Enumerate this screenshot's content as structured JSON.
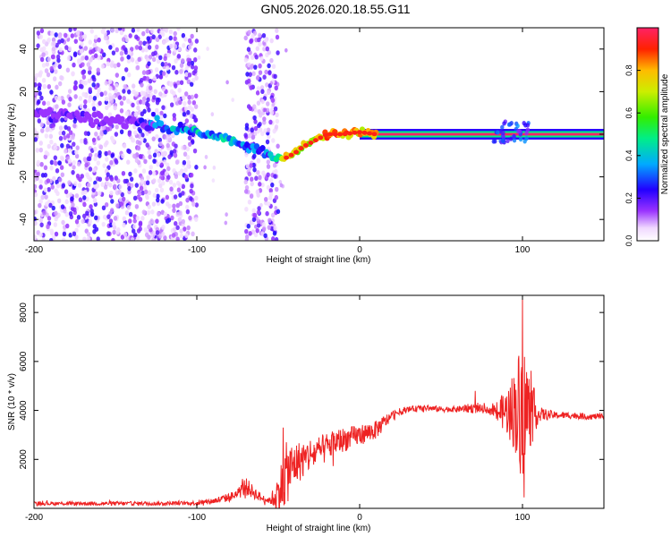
{
  "figure": {
    "title": "GN05.2026.020.18.55.G11"
  },
  "chart_data": [
    {
      "type": "heatmap",
      "xlabel": "Height of straight line (km)",
      "ylabel": "Frequency (Hz)",
      "xlim": [
        -200,
        150
      ],
      "ylim": [
        -50,
        50
      ],
      "xticks": [
        -200,
        -100,
        0,
        100
      ],
      "yticks": [
        -40,
        -20,
        0,
        20,
        40
      ],
      "colorbar": {
        "label": "Normalized spectral amplitude",
        "range": [
          0,
          1
        ],
        "ticks": [
          "0.0",
          "0.2",
          "0.4",
          "0.6",
          "0.8"
        ]
      },
      "ridge": {
        "x": [
          -200,
          -180,
          -160,
          -140,
          -120,
          -100,
          -80,
          -60,
          -50,
          -45,
          -40,
          -35,
          -30,
          -25,
          -20,
          -10,
          0,
          10,
          80,
          90,
          100,
          150
        ],
        "y": [
          10,
          9,
          7,
          6,
          4,
          2,
          -3,
          -8,
          -11,
          -11,
          -9,
          -6,
          -4,
          -2,
          0,
          0,
          1,
          0,
          0,
          0,
          0,
          0
        ],
        "amplitude": [
          0.2,
          0.25,
          0.2,
          0.2,
          0.45,
          0.5,
          0.5,
          0.35,
          0.55,
          0.9,
          0.85,
          0.85,
          0.85,
          0.9,
          0.95,
          0.95,
          0.9,
          0.95,
          0.95,
          0.95,
          0.95,
          0.95
        ]
      },
      "noise_regions": [
        [
          -200,
          -100
        ],
        [
          -70,
          -50
        ]
      ]
    },
    {
      "type": "line",
      "xlabel": "Height of straight line (km)",
      "ylabel": "SNR (10 * v/v)",
      "xlim": [
        -200,
        150
      ],
      "ylim": [
        0,
        8700
      ],
      "xticks": [
        -200,
        -100,
        0,
        100
      ],
      "yticks": [
        2000,
        4000,
        6000,
        8000
      ],
      "series": [
        {
          "name": "SNR",
          "color": "#ee2222",
          "x": [
            -200,
            -180,
            -160,
            -140,
            -120,
            -100,
            -90,
            -80,
            -75,
            -70,
            -65,
            -60,
            -55,
            -50,
            -45,
            -40,
            -35,
            -30,
            -25,
            -20,
            -15,
            -10,
            -5,
            0,
            5,
            10,
            15,
            20,
            25,
            30,
            40,
            50,
            60,
            70,
            80,
            85,
            90,
            95,
            100,
            105,
            110,
            120,
            130,
            140,
            150
          ],
          "y": [
            200,
            200,
            200,
            200,
            200,
            220,
            300,
            450,
            600,
            900,
            650,
            400,
            320,
            600,
            1400,
            1800,
            2000,
            2200,
            2300,
            2500,
            2700,
            2800,
            2900,
            3000,
            3100,
            3200,
            3500,
            3800,
            3950,
            4050,
            4100,
            4050,
            4050,
            4100,
            4000,
            3950,
            3950,
            4050,
            4100,
            4000,
            3850,
            3800,
            3800,
            3750,
            3750
          ],
          "amp": [
            80,
            80,
            80,
            80,
            80,
            90,
            120,
            180,
            220,
            380,
            260,
            160,
            120,
            900,
            1300,
            900,
            800,
            700,
            650,
            600,
            550,
            500,
            450,
            420,
            400,
            380,
            300,
            200,
            150,
            120,
            120,
            120,
            120,
            220,
            120,
            500,
            900,
            1700,
            3000,
            1500,
            300,
            150,
            140,
            130,
            120
          ],
          "spikes": [
            {
              "x": -72,
              "y": 1200
            },
            {
              "x": -47,
              "y": 3300
            },
            {
              "x": 71,
              "y": 4800
            },
            {
              "x": 100,
              "y": 8650
            },
            {
              "x": 101,
              "y": 450
            }
          ]
        }
      ]
    }
  ]
}
